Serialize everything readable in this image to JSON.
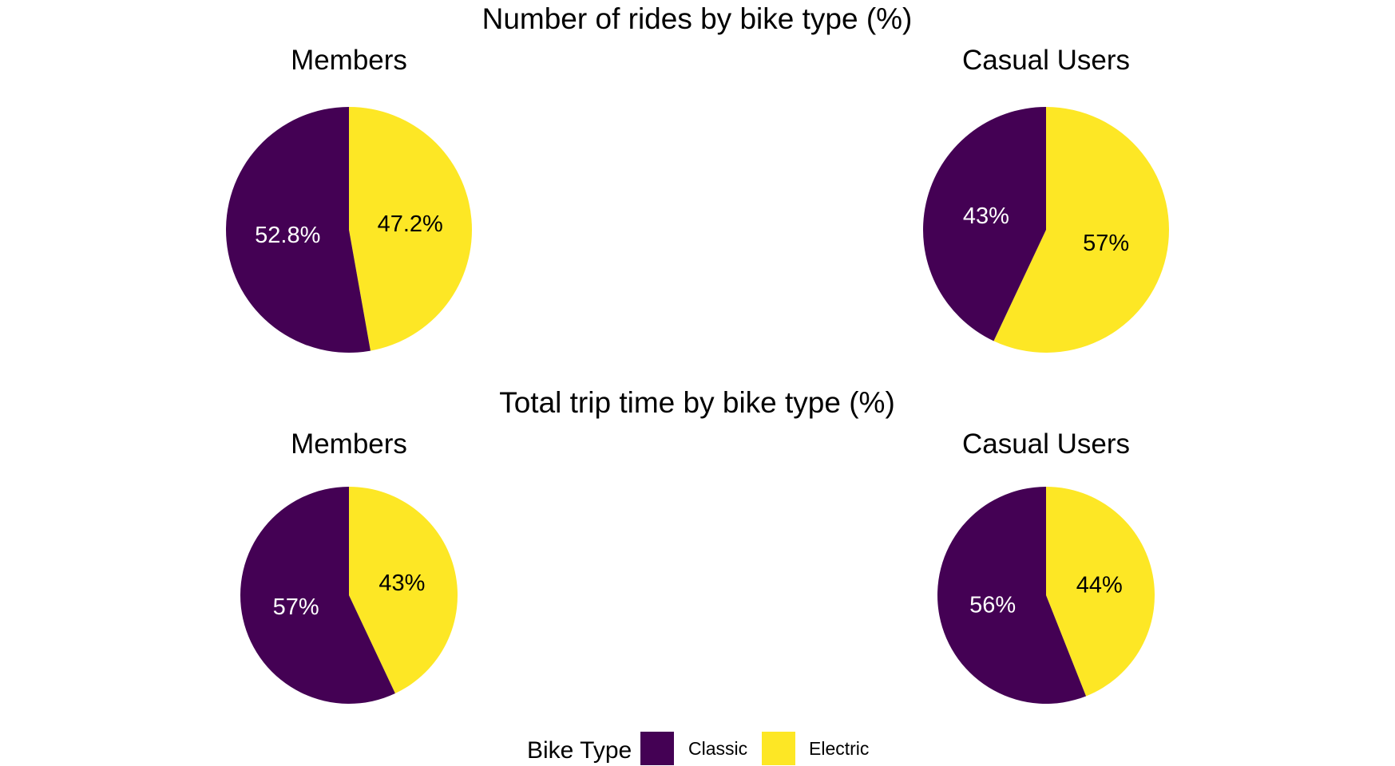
{
  "colors": {
    "Classic": "#440154",
    "Electric": "#FDE725",
    "label_on_Classic": "#ffffff",
    "label_on_Electric": "#000000"
  },
  "legend": {
    "title": "Bike Type",
    "items": [
      "Classic",
      "Electric"
    ]
  },
  "chart_data": [
    {
      "type": "pie",
      "section_title": "Number of rides by bike type (%)",
      "title": "Members",
      "categories": [
        "Classic",
        "Electric"
      ],
      "values": [
        52.8,
        47.2
      ],
      "labels": [
        "52.8%",
        "47.2%"
      ]
    },
    {
      "type": "pie",
      "section_title": "Number of rides by bike type (%)",
      "title": "Casual Users",
      "categories": [
        "Classic",
        "Electric"
      ],
      "values": [
        43,
        57
      ],
      "labels": [
        "43%",
        "57%"
      ]
    },
    {
      "type": "pie",
      "section_title": "Total trip time by bike type (%)",
      "title": "Members",
      "categories": [
        "Classic",
        "Electric"
      ],
      "values": [
        57,
        43
      ],
      "labels": [
        "57%",
        "43%"
      ]
    },
    {
      "type": "pie",
      "section_title": "Total trip time by bike type (%)",
      "title": "Casual Users",
      "categories": [
        "Classic",
        "Electric"
      ],
      "values": [
        56,
        44
      ],
      "labels": [
        "56%",
        "44%"
      ]
    }
  ]
}
